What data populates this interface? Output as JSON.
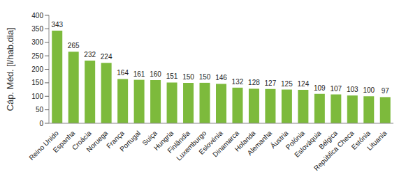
{
  "chart_data": {
    "type": "bar",
    "y_label": "Cáp. Méd. [l/hab.dia]",
    "categories": [
      "Reino Unido",
      "Espanha",
      "Croácia",
      "Noruega",
      "França",
      "Portugal",
      "Suiça",
      "Hungria",
      "Finlândia",
      "Luxemburgo",
      "Eslovénia",
      "Dinamarca",
      "Holanda",
      "Alemanha",
      "Áustria",
      "Polónia",
      "Eslováquia",
      "Bélgica",
      "República Checa",
      "Estónia",
      "Lituania"
    ],
    "values": [
      343,
      265,
      232,
      224,
      164,
      161,
      160,
      151,
      150,
      150,
      146,
      132,
      128,
      127,
      125,
      124,
      109,
      107,
      103,
      100,
      97
    ],
    "color": "#7dba3c",
    "ylim": [
      0,
      400
    ],
    "yticks": [
      0,
      50,
      100,
      150,
      200,
      250,
      300,
      350,
      400
    ],
    "grid": false,
    "data_labels": true
  }
}
